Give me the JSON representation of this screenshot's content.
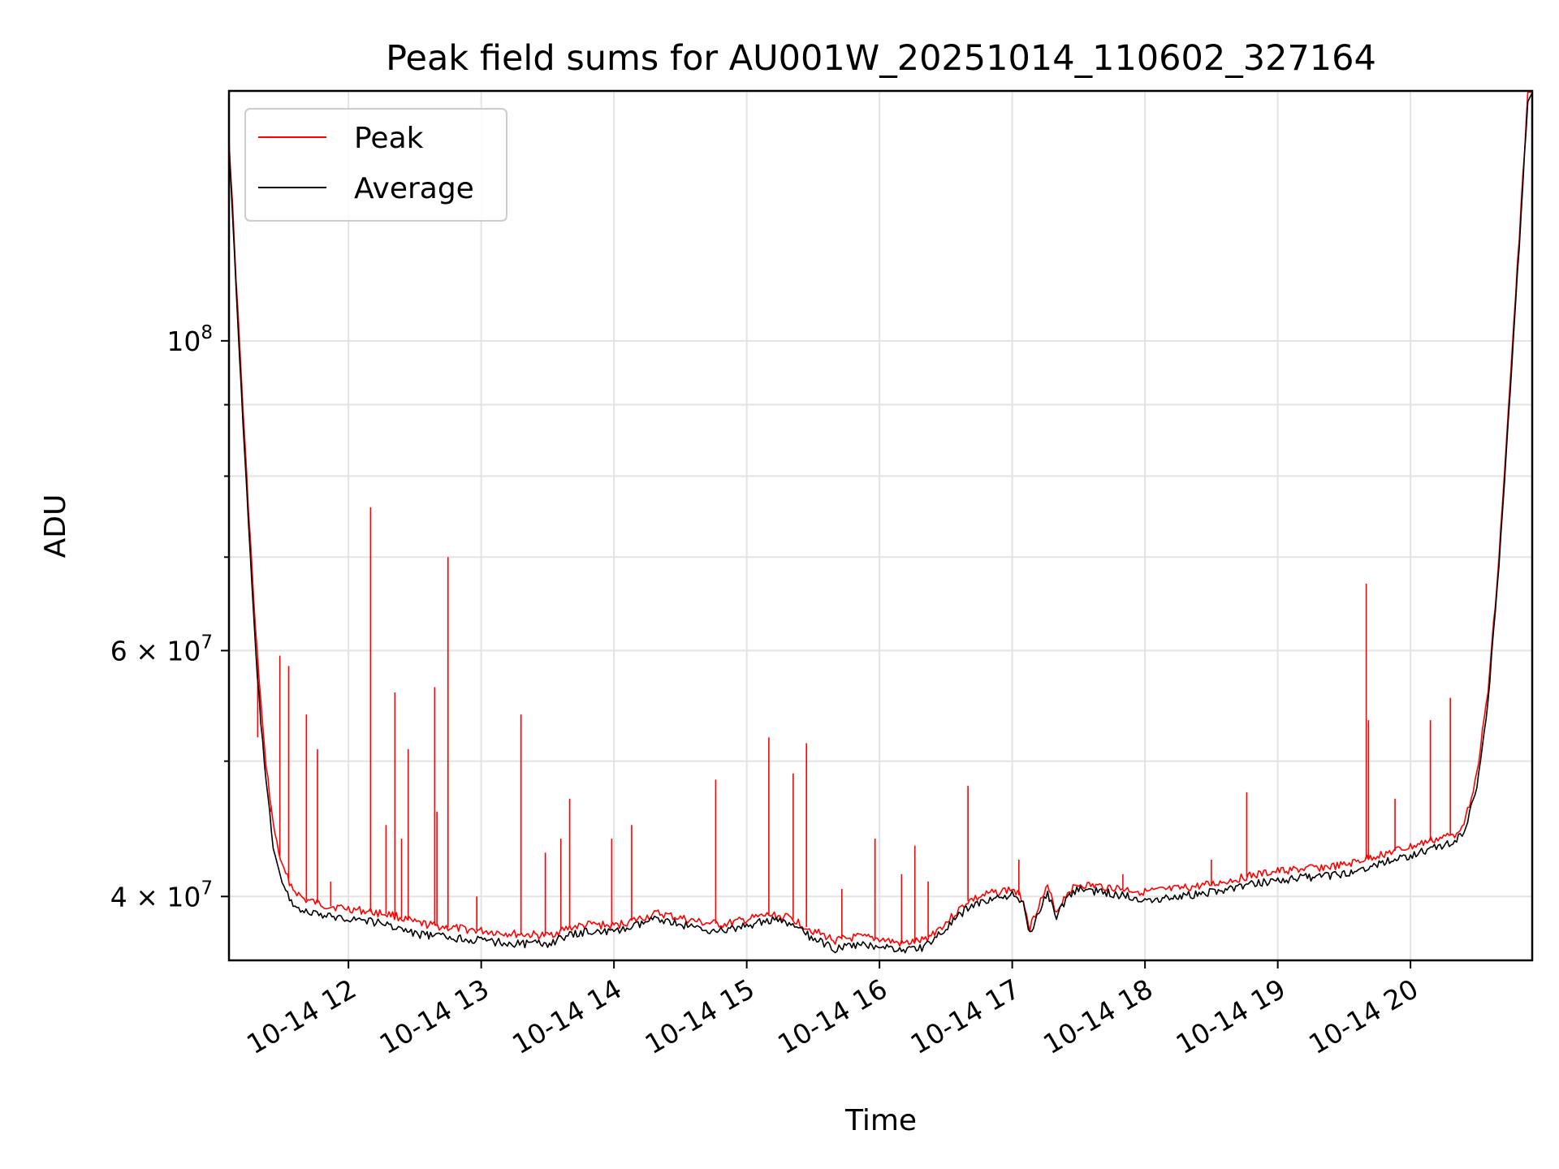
{
  "chart_data": {
    "type": "line",
    "title": "Peak field sums for AU001W_20251014_110602_327164",
    "xlabel": "Time",
    "ylabel": "ADU",
    "yscale": "log",
    "grid": true,
    "legend_placement": "top-left",
    "xlim": [
      "2025-10-14 11:06",
      "2025-10-14 20:55"
    ],
    "ylim": [
      36000000,
      151000000
    ],
    "x_ticks": [
      {
        "time": "2025-10-14 12:00",
        "label": "10-14 12"
      },
      {
        "time": "2025-10-14 13:00",
        "label": "10-14 13"
      },
      {
        "time": "2025-10-14 14:00",
        "label": "10-14 14"
      },
      {
        "time": "2025-10-14 15:00",
        "label": "10-14 15"
      },
      {
        "time": "2025-10-14 16:00",
        "label": "10-14 16"
      },
      {
        "time": "2025-10-14 17:00",
        "label": "10-14 17"
      },
      {
        "time": "2025-10-14 18:00",
        "label": "10-14 18"
      },
      {
        "time": "2025-10-14 19:00",
        "label": "10-14 19"
      },
      {
        "time": "2025-10-14 20:00",
        "label": "10-14 20"
      }
    ],
    "y_ticks": [
      {
        "value": 100000000,
        "base": "10",
        "exp": "8"
      },
      {
        "value": 60000000,
        "base": "6 × 10",
        "exp": "7"
      },
      {
        "value": 40000000,
        "base": "4 × 10",
        "exp": "7"
      }
    ],
    "y_minor_ticks": [
      50000000,
      70000000,
      80000000,
      90000000
    ],
    "series": [
      {
        "name": "Peak",
        "color": "#ff0000",
        "points": [
          [
            "2025-10-14 11:06",
            140000000
          ],
          [
            "2025-10-14 11:10",
            105000000
          ],
          [
            "2025-10-14 11:14",
            80000000
          ],
          [
            "2025-10-14 11:18",
            62000000
          ],
          [
            "2025-10-14 11:22",
            51000000
          ],
          [
            "2025-10-14 11:26",
            45000000
          ],
          [
            "2025-10-14 11:30",
            42000000
          ],
          [
            "2025-10-14 11:35",
            40500000
          ],
          [
            "2025-10-14 11:40",
            39800000
          ],
          [
            "2025-10-14 11:50",
            39400000
          ],
          [
            "2025-10-14 12:00",
            39200000
          ],
          [
            "2025-10-14 12:10",
            39000000
          ],
          [
            "2025-10-14 12:20",
            38800000
          ],
          [
            "2025-10-14 12:30",
            38300000
          ],
          [
            "2025-10-14 12:45",
            38000000
          ],
          [
            "2025-10-14 13:00",
            37800000
          ],
          [
            "2025-10-14 13:15",
            37600000
          ],
          [
            "2025-10-14 13:30",
            37500000
          ],
          [
            "2025-10-14 13:40",
            38000000
          ],
          [
            "2025-10-14 13:50",
            38200000
          ],
          [
            "2025-10-14 14:00",
            38100000
          ],
          [
            "2025-10-14 14:10",
            38500000
          ],
          [
            "2025-10-14 14:20",
            38900000
          ],
          [
            "2025-10-14 14:30",
            38600000
          ],
          [
            "2025-10-14 14:40",
            38300000
          ],
          [
            "2025-10-14 14:50",
            38200000
          ],
          [
            "2025-10-14 15:00",
            38500000
          ],
          [
            "2025-10-14 15:10",
            38800000
          ],
          [
            "2025-10-14 15:20",
            38600000
          ],
          [
            "2025-10-14 15:30",
            37800000
          ],
          [
            "2025-10-14 15:40",
            37200000
          ],
          [
            "2025-10-14 15:50",
            37400000
          ],
          [
            "2025-10-14 16:00",
            37300000
          ],
          [
            "2025-10-14 16:10",
            37000000
          ],
          [
            "2025-10-14 16:20",
            37200000
          ],
          [
            "2025-10-14 16:30",
            38300000
          ],
          [
            "2025-10-14 16:40",
            39700000
          ],
          [
            "2025-10-14 16:50",
            40200000
          ],
          [
            "2025-10-14 17:00",
            40500000
          ],
          [
            "2025-10-14 17:05",
            39800000
          ],
          [
            "2025-10-14 17:08",
            38000000
          ],
          [
            "2025-10-14 17:12",
            39500000
          ],
          [
            "2025-10-14 17:16",
            40600000
          ],
          [
            "2025-10-14 17:20",
            39000000
          ],
          [
            "2025-10-14 17:25",
            40300000
          ],
          [
            "2025-10-14 17:30",
            40800000
          ],
          [
            "2025-10-14 17:45",
            40600000
          ],
          [
            "2025-10-14 18:00",
            40300000
          ],
          [
            "2025-10-14 18:15",
            40500000
          ],
          [
            "2025-10-14 18:30",
            40800000
          ],
          [
            "2025-10-14 18:45",
            41300000
          ],
          [
            "2025-10-14 19:00",
            41700000
          ],
          [
            "2025-10-14 19:15",
            41900000
          ],
          [
            "2025-10-14 19:30",
            42100000
          ],
          [
            "2025-10-14 19:45",
            42800000
          ],
          [
            "2025-10-14 20:00",
            43400000
          ],
          [
            "2025-10-14 20:10",
            43900000
          ],
          [
            "2025-10-14 20:20",
            44300000
          ],
          [
            "2025-10-14 20:25",
            45500000
          ],
          [
            "2025-10-14 20:30",
            49000000
          ],
          [
            "2025-10-14 20:35",
            56000000
          ],
          [
            "2025-10-14 20:40",
            70000000
          ],
          [
            "2025-10-14 20:45",
            93000000
          ],
          [
            "2025-10-14 20:50",
            125000000
          ],
          [
            "2025-10-14 20:53",
            150000000
          ],
          [
            "2025-10-14 20:55",
            151000000
          ]
        ]
      },
      {
        "name": "Average",
        "color": "#000000",
        "points": [
          [
            "2025-10-14 11:06",
            138000000
          ],
          [
            "2025-10-14 11:10",
            103000000
          ],
          [
            "2025-10-14 11:14",
            78000000
          ],
          [
            "2025-10-14 11:18",
            60000000
          ],
          [
            "2025-10-14 11:22",
            49500000
          ],
          [
            "2025-10-14 11:26",
            43500000
          ],
          [
            "2025-10-14 11:30",
            40800000
          ],
          [
            "2025-10-14 11:35",
            39500000
          ],
          [
            "2025-10-14 11:40",
            39000000
          ],
          [
            "2025-10-14 11:50",
            38700000
          ],
          [
            "2025-10-14 12:00",
            38600000
          ],
          [
            "2025-10-14 12:10",
            38400000
          ],
          [
            "2025-10-14 12:20",
            38100000
          ],
          [
            "2025-10-14 12:30",
            37600000
          ],
          [
            "2025-10-14 12:45",
            37400000
          ],
          [
            "2025-10-14 13:00",
            37200000
          ],
          [
            "2025-10-14 13:15",
            37000000
          ],
          [
            "2025-10-14 13:30",
            37000000
          ],
          [
            "2025-10-14 13:40",
            37500000
          ],
          [
            "2025-10-14 13:50",
            37800000
          ],
          [
            "2025-10-14 14:00",
            37700000
          ],
          [
            "2025-10-14 14:10",
            38100000
          ],
          [
            "2025-10-14 14:20",
            38600000
          ],
          [
            "2025-10-14 14:30",
            38200000
          ],
          [
            "2025-10-14 14:40",
            37900000
          ],
          [
            "2025-10-14 14:50",
            37800000
          ],
          [
            "2025-10-14 15:00",
            38100000
          ],
          [
            "2025-10-14 15:10",
            38500000
          ],
          [
            "2025-10-14 15:20",
            38200000
          ],
          [
            "2025-10-14 15:30",
            37300000
          ],
          [
            "2025-10-14 15:40",
            36700000
          ],
          [
            "2025-10-14 15:50",
            36900000
          ],
          [
            "2025-10-14 16:00",
            36900000
          ],
          [
            "2025-10-14 16:10",
            36600000
          ],
          [
            "2025-10-14 16:20",
            36800000
          ],
          [
            "2025-10-14 16:30",
            37900000
          ],
          [
            "2025-10-14 16:40",
            39300000
          ],
          [
            "2025-10-14 16:50",
            39800000
          ],
          [
            "2025-10-14 17:00",
            40100000
          ],
          [
            "2025-10-14 17:05",
            39400000
          ],
          [
            "2025-10-14 17:08",
            37600000
          ],
          [
            "2025-10-14 17:12",
            39100000
          ],
          [
            "2025-10-14 17:16",
            40200000
          ],
          [
            "2025-10-14 17:20",
            38700000
          ],
          [
            "2025-10-14 17:25",
            40000000
          ],
          [
            "2025-10-14 17:30",
            40500000
          ],
          [
            "2025-10-14 17:45",
            40200000
          ],
          [
            "2025-10-14 18:00",
            39800000
          ],
          [
            "2025-10-14 18:15",
            40000000
          ],
          [
            "2025-10-14 18:30",
            40300000
          ],
          [
            "2025-10-14 18:45",
            40700000
          ],
          [
            "2025-10-14 19:00",
            41100000
          ],
          [
            "2025-10-14 19:15",
            41300000
          ],
          [
            "2025-10-14 19:30",
            41500000
          ],
          [
            "2025-10-14 19:45",
            42200000
          ],
          [
            "2025-10-14 20:00",
            42800000
          ],
          [
            "2025-10-14 20:10",
            43300000
          ],
          [
            "2025-10-14 20:20",
            43700000
          ],
          [
            "2025-10-14 20:25",
            44800000
          ],
          [
            "2025-10-14 20:30",
            48000000
          ],
          [
            "2025-10-14 20:35",
            55000000
          ],
          [
            "2025-10-14 20:40",
            69000000
          ],
          [
            "2025-10-14 20:45",
            92000000
          ],
          [
            "2025-10-14 20:50",
            123000000
          ],
          [
            "2025-10-14 20:53",
            149000000
          ],
          [
            "2025-10-14 20:55",
            150500000
          ]
        ]
      }
    ],
    "annotations": {
      "peak_spikes": [
        [
          "2025-10-14 11:19",
          52000000
        ],
        [
          "2025-10-14 11:25",
          46000000
        ],
        [
          "2025-10-14 11:29",
          59500000
        ],
        [
          "2025-10-14 11:33",
          58500000
        ],
        [
          "2025-10-14 11:41",
          54000000
        ],
        [
          "2025-10-14 11:46",
          51000000
        ],
        [
          "2025-10-14 11:52",
          41000000
        ],
        [
          "2025-10-14 12:10",
          76000000
        ],
        [
          "2025-10-14 12:17",
          45000000
        ],
        [
          "2025-10-14 12:21",
          56000000
        ],
        [
          "2025-10-14 12:24",
          44000000
        ],
        [
          "2025-10-14 12:27",
          51000000
        ],
        [
          "2025-10-14 12:39",
          56500000
        ],
        [
          "2025-10-14 12:40",
          46000000
        ],
        [
          "2025-10-14 12:45",
          70000000
        ],
        [
          "2025-10-14 12:58",
          40000000
        ],
        [
          "2025-10-14 13:18",
          54000000
        ],
        [
          "2025-10-14 13:29",
          43000000
        ],
        [
          "2025-10-14 13:36",
          44000000
        ],
        [
          "2025-10-14 13:40",
          47000000
        ],
        [
          "2025-10-14 13:59",
          44000000
        ],
        [
          "2025-10-14 14:08",
          45000000
        ],
        [
          "2025-10-14 14:46",
          48500000
        ],
        [
          "2025-10-14 15:10",
          52000000
        ],
        [
          "2025-10-14 15:21",
          49000000
        ],
        [
          "2025-10-14 15:27",
          51500000
        ],
        [
          "2025-10-14 15:43",
          40500000
        ],
        [
          "2025-10-14 15:58",
          44000000
        ],
        [
          "2025-10-14 16:10",
          41500000
        ],
        [
          "2025-10-14 16:16",
          43500000
        ],
        [
          "2025-10-14 16:22",
          41000000
        ],
        [
          "2025-10-14 16:40",
          48000000
        ],
        [
          "2025-10-14 17:03",
          42500000
        ],
        [
          "2025-10-14 17:50",
          41500000
        ],
        [
          "2025-10-14 18:30",
          42500000
        ],
        [
          "2025-10-14 18:46",
          47500000
        ],
        [
          "2025-10-14 19:40",
          67000000
        ],
        [
          "2025-10-14 19:41",
          53500000
        ],
        [
          "2025-10-14 19:53",
          47000000
        ],
        [
          "2025-10-14 20:09",
          53500000
        ],
        [
          "2025-10-14 20:18",
          55500000
        ]
      ]
    }
  }
}
